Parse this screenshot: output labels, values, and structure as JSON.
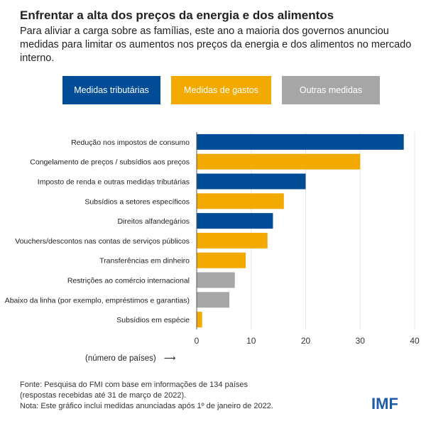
{
  "header": {
    "title": "Enfrentar a alta dos preços da energia e dos alimentos",
    "subtitle": "Para aliviar a carga sobre as famílias, este ano a maioria dos governos anunciou medidas para limitar os aumentos nos preços da energia e dos alimentos no mercado interno."
  },
  "chart_data": {
    "type": "bar",
    "orientation": "horizontal",
    "categories": [
      "Redução nos impostos de consumo",
      "Congelamento de preços / subsídios aos preços",
      "Imposto de renda e outras medidas tributárias",
      "Subsídios a setores específicos",
      "Direitos alfandegários",
      "Vouchers/descontos nas contas de serviços públicos",
      "Transferências em dinheiro",
      "Restrições ao comércio internacional",
      "Abaixo da linha (por exemplo, empréstimos e garantias)",
      "Subsídios em espécie"
    ],
    "values": [
      38,
      30,
      20,
      16,
      14,
      13,
      9,
      7,
      6,
      1
    ],
    "groups": [
      "tax",
      "spend",
      "tax",
      "spend",
      "tax",
      "spend",
      "spend",
      "other",
      "other",
      "spend"
    ],
    "legend": [
      {
        "key": "tax",
        "name": "Medidas tributárias",
        "color": "#004c97"
      },
      {
        "key": "spend",
        "name": "Medidas de gastos",
        "color": "#f2a900"
      },
      {
        "key": "other",
        "name": "Outras medidas",
        "color": "#a6a6a6"
      }
    ],
    "legend_placement": "top",
    "xlabel": "(número de países)",
    "xlim": [
      0,
      40
    ],
    "xticks": [
      0,
      10,
      20,
      30,
      40
    ],
    "grid": true
  },
  "footer": {
    "source_lines": [
      "Fonte: Pesquisa do FMI com base em informações de 134 países",
      "(respostas recebidas até 31 de março de 2022).",
      "Nota: Este gráfico inclui medidas anunciadas após 1º de janeiro de 2022."
    ],
    "logo": "IMF"
  }
}
